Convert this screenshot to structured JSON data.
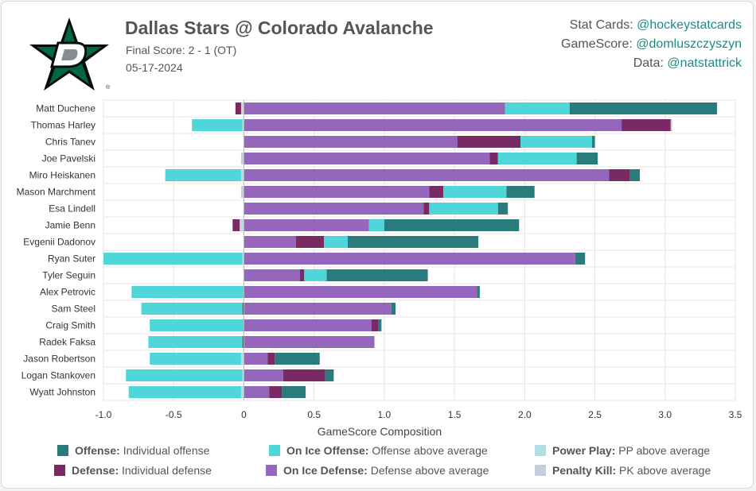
{
  "header": {
    "title": "Dallas Stars @ Colorado Avalanche",
    "final_score": "Final Score: 2 - 1 (OT)",
    "date": "05-17-2024"
  },
  "credits": [
    {
      "label": "Stat Cards:",
      "handle": "@hockeystatcards"
    },
    {
      "label": "GameScore:",
      "handle": "@domluszczyszyn"
    },
    {
      "label": "Data:",
      "handle": "@natstattrick"
    }
  ],
  "colors": {
    "offense": "#2a7b7c",
    "defense": "#7a2a63",
    "on_ice_offense": "#4fd6d8",
    "on_ice_defense": "#9467bd",
    "power_play": "#b0e0e6",
    "penalty_kill": "#c8cce0",
    "credit_link": "#1e8a86",
    "logo_green": "#006847"
  },
  "legend": [
    {
      "key": "offense",
      "bold": "Offense:",
      "text": "Individual offense"
    },
    {
      "key": "on_ice_offense",
      "bold": "On Ice Offense:",
      "text": "Offense above average"
    },
    {
      "key": "power_play",
      "bold": "Power Play:",
      "text": "PP above average"
    },
    {
      "key": "defense",
      "bold": "Defense:",
      "text": "Individual defense"
    },
    {
      "key": "on_ice_defense",
      "bold": "On Ice Defense:",
      "text": "Defense above average"
    },
    {
      "key": "penalty_kill",
      "bold": "Penalty Kill:",
      "text": "PK above average"
    }
  ],
  "chart_data": {
    "type": "bar",
    "orientation": "horizontal",
    "stacked": true,
    "xlabel": "GameScore Composition",
    "xlim": [
      -1.0,
      3.5
    ],
    "xticks": [
      -1.0,
      -0.5,
      0,
      0.5,
      1.0,
      1.5,
      2.0,
      2.5,
      3.0,
      3.5
    ],
    "xtick_labels": [
      "-1.0",
      "-0.5",
      "0",
      "0.5",
      "1.0",
      "1.5",
      "2.0",
      "2.5",
      "3.0",
      "3.5"
    ],
    "grid": true,
    "categories": [
      "Matt Duchene",
      "Thomas Harley",
      "Chris Tanev",
      "Joe Pavelski",
      "Miro Heiskanen",
      "Mason Marchment",
      "Esa Lindell",
      "Jamie Benn",
      "Evgenii Dadonov",
      "Ryan Suter",
      "Tyler Seguin",
      "Alex Petrovic",
      "Sam Steel",
      "Craig Smith",
      "Radek Faksa",
      "Jason Robertson",
      "Logan Stankoven",
      "Wyatt Johnston"
    ],
    "series": [
      {
        "name": "Offense",
        "key": "offense",
        "values": [
          1.05,
          0.0,
          0.02,
          0.15,
          0.07,
          0.2,
          0.07,
          0.96,
          0.93,
          0.07,
          0.72,
          0.02,
          0.03,
          0.02,
          0.0,
          0.32,
          0.06,
          0.17
        ]
      },
      {
        "name": "Defense",
        "key": "defense",
        "values": [
          -0.04,
          0.35,
          0.45,
          0.06,
          0.15,
          0.1,
          0.04,
          -0.05,
          0.2,
          0.0,
          0.03,
          0.0,
          -0.01,
          0.05,
          -0.01,
          0.05,
          0.3,
          0.09
        ]
      },
      {
        "name": "On Ice Offense",
        "key": "on_ice_offense",
        "values": [
          0.46,
          -0.36,
          0.51,
          0.56,
          -0.54,
          0.45,
          0.49,
          0.11,
          0.17,
          -0.99,
          0.16,
          -0.8,
          -0.72,
          -0.67,
          -0.67,
          -0.65,
          -0.83,
          -0.8
        ]
      },
      {
        "name": "On Ice Defense",
        "key": "on_ice_defense",
        "values": [
          1.86,
          2.69,
          1.52,
          1.75,
          2.6,
          1.32,
          1.28,
          0.89,
          0.37,
          2.36,
          0.4,
          1.66,
          1.05,
          0.91,
          0.93,
          0.17,
          0.28,
          0.18
        ]
      },
      {
        "name": "Power Play",
        "key": "power_play",
        "values": [
          -0.01,
          -0.01,
          0.0,
          0.0,
          -0.02,
          0.0,
          0.0,
          -0.02,
          0.0,
          -0.01,
          0.0,
          0.0,
          0.0,
          0.0,
          0.0,
          -0.02,
          -0.01,
          -0.02
        ]
      },
      {
        "name": "Penalty Kill",
        "key": "penalty_kill",
        "values": [
          -0.01,
          0.01,
          0.0,
          -0.02,
          0.0,
          -0.02,
          0.0,
          -0.01,
          0.0,
          0.0,
          0.0,
          0.0,
          0.0,
          0.0,
          0.0,
          0.0,
          0.0,
          0.0
        ]
      }
    ]
  }
}
